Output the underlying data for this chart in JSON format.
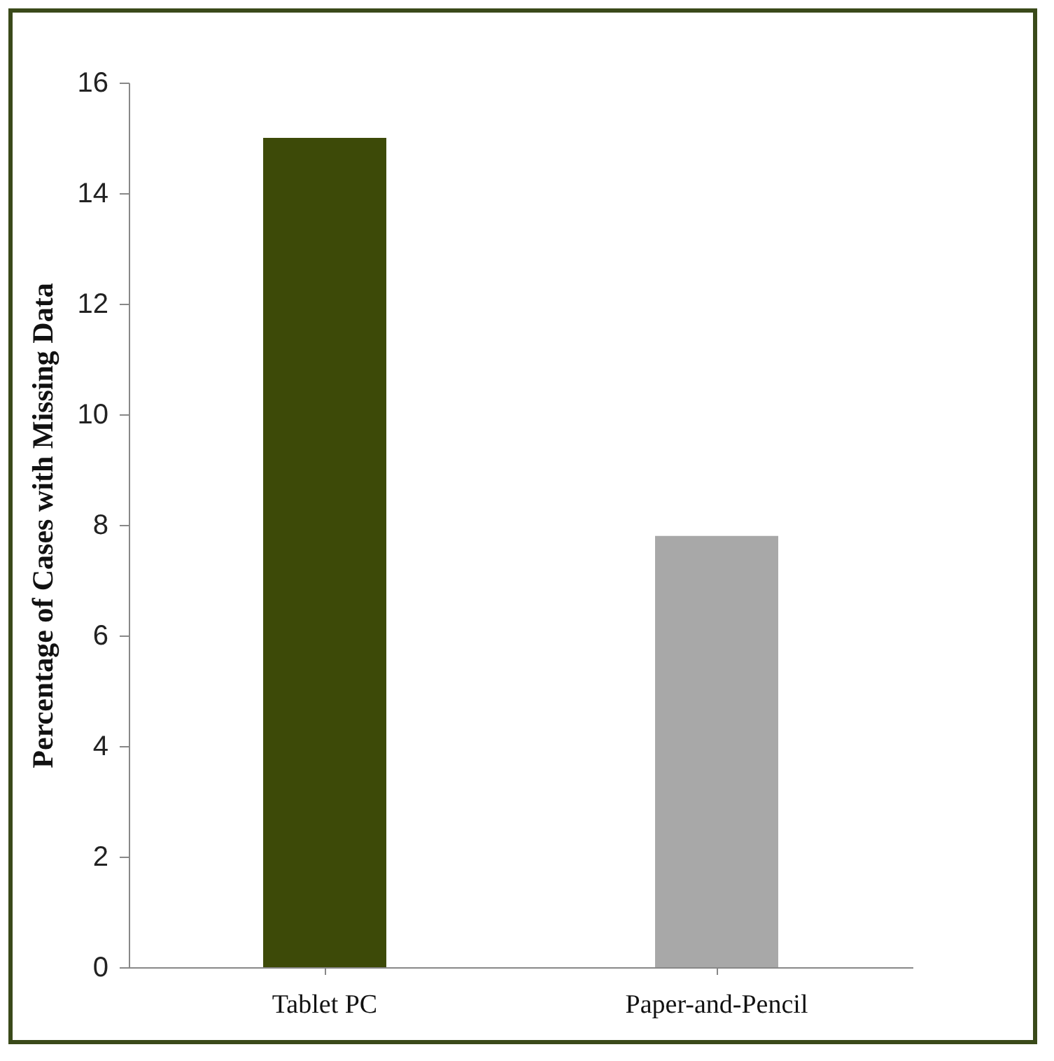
{
  "chart_data": {
    "type": "bar",
    "ylabel": "Percentage of Cases with Missing Data",
    "categories": [
      "Tablet PC",
      "Paper-and-Pencil"
    ],
    "values": [
      15,
      7.8
    ],
    "colors": [
      "#3d4a08",
      "#a8a8a8"
    ],
    "ylim": [
      0,
      16
    ],
    "yticks": [
      0,
      2,
      4,
      6,
      8,
      10,
      12,
      14,
      16
    ],
    "grid": false,
    "legend": false
  }
}
